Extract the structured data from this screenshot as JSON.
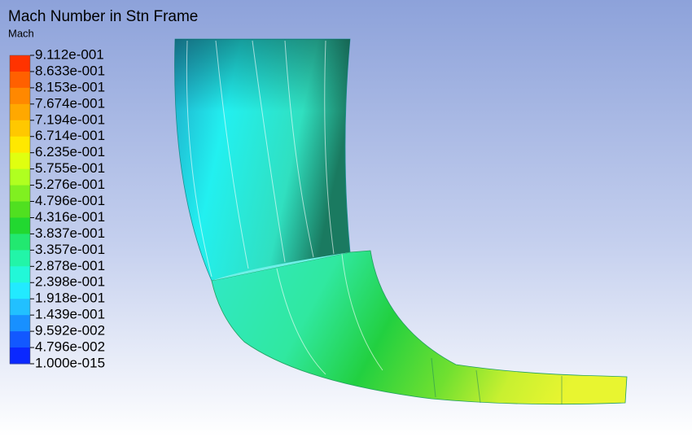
{
  "header": {
    "title": "Mach Number in Stn Frame",
    "variable": "Mach"
  },
  "legend": {
    "labels": [
      "9.112e-001",
      "8.633e-001",
      "8.153e-001",
      "7.674e-001",
      "7.194e-001",
      "6.714e-001",
      "6.235e-001",
      "5.755e-001",
      "5.276e-001",
      "4.796e-001",
      "4.316e-001",
      "3.837e-001",
      "3.357e-001",
      "2.878e-001",
      "2.398e-001",
      "1.918e-001",
      "1.439e-001",
      "9.592e-002",
      "4.796e-002",
      "1.000e-015"
    ],
    "colors": [
      "#ff3300",
      "#ff6000",
      "#ff8800",
      "#ffa800",
      "#ffc800",
      "#ffe800",
      "#e0ff10",
      "#b0ff20",
      "#80f020",
      "#50e020",
      "#22d830",
      "#22e870",
      "#22f5a8",
      "#22f8d8",
      "#22eaff",
      "#22c0ff",
      "#1890ff",
      "#1258ff",
      "#0a28ff"
    ]
  }
}
